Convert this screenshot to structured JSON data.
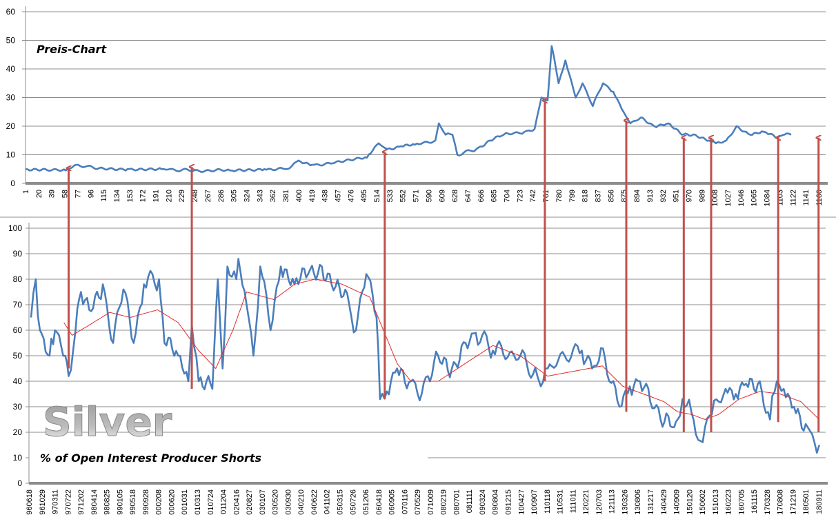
{
  "chart_data": [
    {
      "type": "line",
      "title": "Preis-Chart",
      "ylim": [
        0,
        60
      ],
      "yticks": [
        0,
        10,
        20,
        30,
        40,
        50,
        60
      ],
      "xticks": [
        "1",
        "20",
        "39",
        "58",
        "77",
        "96",
        "115",
        "134",
        "153",
        "172",
        "191",
        "210",
        "229",
        "248",
        "267",
        "286",
        "305",
        "324",
        "343",
        "362",
        "381",
        "400",
        "419",
        "438",
        "457",
        "476",
        "495",
        "514",
        "533",
        "552",
        "571",
        "590",
        "609",
        "628",
        "647",
        "666",
        "685",
        "704",
        "723",
        "742",
        "761",
        "780",
        "799",
        "818",
        "837",
        "856",
        "875",
        "894",
        "913",
        "932",
        "951",
        "970",
        "989",
        "1008",
        "1027",
        "1046",
        "1065",
        "1084",
        "1103",
        "1122",
        "1141",
        "1160"
      ],
      "grid": true,
      "series": [
        {
          "name": "Price",
          "color": "#4a7ebb",
          "points": [
            [
              1,
              5
            ],
            [
              30,
              5
            ],
            [
              60,
              4.5
            ],
            [
              75,
              6.5
            ],
            [
              100,
              5.5
            ],
            [
              150,
              5
            ],
            [
              200,
              5
            ],
            [
              240,
              4.5
            ],
            [
              300,
              4.5
            ],
            [
              350,
              5
            ],
            [
              380,
              5
            ],
            [
              390,
              6
            ],
            [
              400,
              8
            ],
            [
              420,
              6.5
            ],
            [
              450,
              7
            ],
            [
              500,
              9
            ],
            [
              517,
              14
            ],
            [
              530,
              12
            ],
            [
              550,
              13
            ],
            [
              570,
              13.5
            ],
            [
              600,
              15
            ],
            [
              605,
              21
            ],
            [
              615,
              17
            ],
            [
              625,
              17
            ],
            [
              632,
              10
            ],
            [
              660,
              12
            ],
            [
              680,
              15
            ],
            [
              700,
              17
            ],
            [
              730,
              18
            ],
            [
              745,
              19
            ],
            [
              755,
              30
            ],
            [
              764,
              29
            ],
            [
              770,
              48
            ],
            [
              780,
              35
            ],
            [
              790,
              43
            ],
            [
              805,
              30
            ],
            [
              815,
              35
            ],
            [
              830,
              27
            ],
            [
              845,
              35
            ],
            [
              860,
              32
            ],
            [
              875,
              25
            ],
            [
              885,
              21
            ],
            [
              900,
              23
            ],
            [
              920,
              20
            ],
            [
              940,
              21
            ],
            [
              960,
              17
            ],
            [
              980,
              17
            ],
            [
              1000,
              15
            ],
            [
              1010,
              14
            ],
            [
              1025,
              15
            ],
            [
              1040,
              20
            ],
            [
              1060,
              17
            ],
            [
              1080,
              18
            ],
            [
              1100,
              16
            ],
            [
              1110,
              17
            ],
            [
              1120,
              17
            ]
          ]
        }
      ]
    },
    {
      "type": "line",
      "title": "% of Open Interest Producer Shorts",
      "watermark": "Silver",
      "ylim": [
        0,
        100
      ],
      "yticks": [
        0,
        10,
        20,
        30,
        40,
        50,
        60,
        70,
        80,
        90,
        100
      ],
      "xticks": [
        "960618",
        "961029",
        "970311",
        "970722",
        "971202",
        "980414",
        "980825",
        "990105",
        "990518",
        "990928",
        "000208",
        "000620",
        "001031",
        "010313",
        "010724",
        "011204",
        "020416",
        "020827",
        "030107",
        "030520",
        "030930",
        "040210",
        "040622",
        "041102",
        "050315",
        "050726",
        "051206",
        "060418",
        "060905",
        "070116",
        "070529",
        "071009",
        "080219",
        "080701",
        "081111",
        "090324",
        "090804",
        "091215",
        "100427",
        "100907",
        "110118",
        "110531",
        "111011",
        "120221",
        "120703",
        "121113",
        "130326",
        "130806",
        "131217",
        "140429",
        "140909",
        "150120",
        "150602",
        "151013",
        "160223",
        "160705",
        "161115",
        "170328",
        "170808",
        "171219",
        "180501",
        "180911"
      ],
      "grid": true,
      "series": [
        {
          "name": "Producer Shorts",
          "color": "#4a7ebb",
          "points": [
            [
              4,
              65
            ],
            [
              11,
              80
            ],
            [
              17,
              60
            ],
            [
              31,
              50
            ],
            [
              39,
              60
            ],
            [
              54,
              50
            ],
            [
              59,
              42
            ],
            [
              69,
              60
            ],
            [
              77,
              75
            ],
            [
              89,
              68
            ],
            [
              109,
              78
            ],
            [
              124,
              55
            ],
            [
              139,
              76
            ],
            [
              154,
              55
            ],
            [
              169,
              78
            ],
            [
              191,
              80
            ],
            [
              199,
              55
            ],
            [
              219,
              50
            ],
            [
              234,
              40
            ],
            [
              239,
              62
            ],
            [
              249,
              40
            ],
            [
              269,
              37
            ],
            [
              277,
              80
            ],
            [
              284,
              45
            ],
            [
              291,
              85
            ],
            [
              304,
              80
            ],
            [
              307,
              88
            ],
            [
              319,
              70
            ],
            [
              329,
              50
            ],
            [
              339,
              85
            ],
            [
              354,
              60
            ],
            [
              369,
              85
            ],
            [
              389,
              78
            ],
            [
              409,
              82
            ],
            [
              429,
              85
            ],
            [
              449,
              77
            ],
            [
              469,
              70
            ],
            [
              479,
              60
            ],
            [
              494,
              82
            ],
            [
              509,
              65
            ],
            [
              514,
              33
            ],
            [
              524,
              36
            ],
            [
              539,
              45
            ],
            [
              559,
              40
            ],
            [
              569,
              35
            ],
            [
              584,
              42
            ],
            [
              599,
              50
            ],
            [
              619,
              45
            ],
            [
              639,
              55
            ],
            [
              654,
              59
            ],
            [
              679,
              52
            ],
            [
              719,
              50
            ],
            [
              744,
              42
            ],
            [
              749,
              38
            ],
            [
              759,
              45
            ],
            [
              784,
              50
            ],
            [
              809,
              52
            ],
            [
              824,
              45
            ],
            [
              837,
              53
            ],
            [
              849,
              40
            ],
            [
              864,
              30
            ],
            [
              879,
              38
            ],
            [
              894,
              40
            ],
            [
              909,
              32
            ],
            [
              924,
              25
            ],
            [
              944,
              22
            ],
            [
              949,
              25
            ],
            [
              956,
              33
            ],
            [
              969,
              28
            ],
            [
              979,
              17
            ],
            [
              989,
              22
            ],
            [
              999,
              27
            ],
            [
              1009,
              32
            ],
            [
              1019,
              37
            ],
            [
              1034,
              35
            ],
            [
              1049,
              39
            ],
            [
              1069,
              40
            ],
            [
              1084,
              25
            ],
            [
              1094,
              40
            ],
            [
              1104,
              37
            ],
            [
              1119,
              30
            ],
            [
              1139,
              22
            ],
            [
              1149,
              16
            ],
            [
              1156,
              15
            ]
          ]
        },
        {
          "name": "Moving Average",
          "color": "#e32b2b",
          "points": [
            [
              52,
              63
            ],
            [
              64,
              58
            ],
            [
              89,
              62
            ],
            [
              119,
              67
            ],
            [
              149,
              65
            ],
            [
              189,
              68
            ],
            [
              219,
              63
            ],
            [
              249,
              52
            ],
            [
              274,
              45
            ],
            [
              299,
              60
            ],
            [
              319,
              75
            ],
            [
              359,
              72
            ],
            [
              389,
              78
            ],
            [
              419,
              80
            ],
            [
              459,
              78
            ],
            [
              499,
              73
            ],
            [
              519,
              60
            ],
            [
              539,
              47
            ],
            [
              559,
              40
            ],
            [
              599,
              40
            ],
            [
              639,
              47
            ],
            [
              679,
              54
            ],
            [
              719,
              50
            ],
            [
              759,
              42
            ],
            [
              799,
              44
            ],
            [
              839,
              46
            ],
            [
              869,
              38
            ],
            [
              899,
              35
            ],
            [
              929,
              32
            ],
            [
              949,
              28
            ],
            [
              969,
              27
            ],
            [
              989,
              25
            ],
            [
              1009,
              27
            ],
            [
              1039,
              33
            ],
            [
              1069,
              36
            ],
            [
              1099,
              35
            ],
            [
              1129,
              32
            ],
            [
              1156,
              25
            ]
          ]
        }
      ],
      "arrows": [
        {
          "index": 64,
          "from_shorts": 45,
          "to_price": 4.3
        },
        {
          "index": 244,
          "from_shorts": 37,
          "to_price": 4.8
        },
        {
          "index": 526,
          "from_shorts": 33,
          "to_price": 10
        },
        {
          "index": 760,
          "from_shorts": 40,
          "to_price": 28
        },
        {
          "index": 879,
          "from_shorts": 28,
          "to_price": 21
        },
        {
          "index": 963,
          "from_shorts": 20,
          "to_price": 15
        },
        {
          "index": 1003,
          "from_shorts": 20,
          "to_price": 15
        },
        {
          "index": 1101,
          "from_shorts": 24,
          "to_price": 15
        },
        {
          "index": 1160,
          "from_shorts": 20,
          "to_price": 15
        }
      ]
    }
  ]
}
